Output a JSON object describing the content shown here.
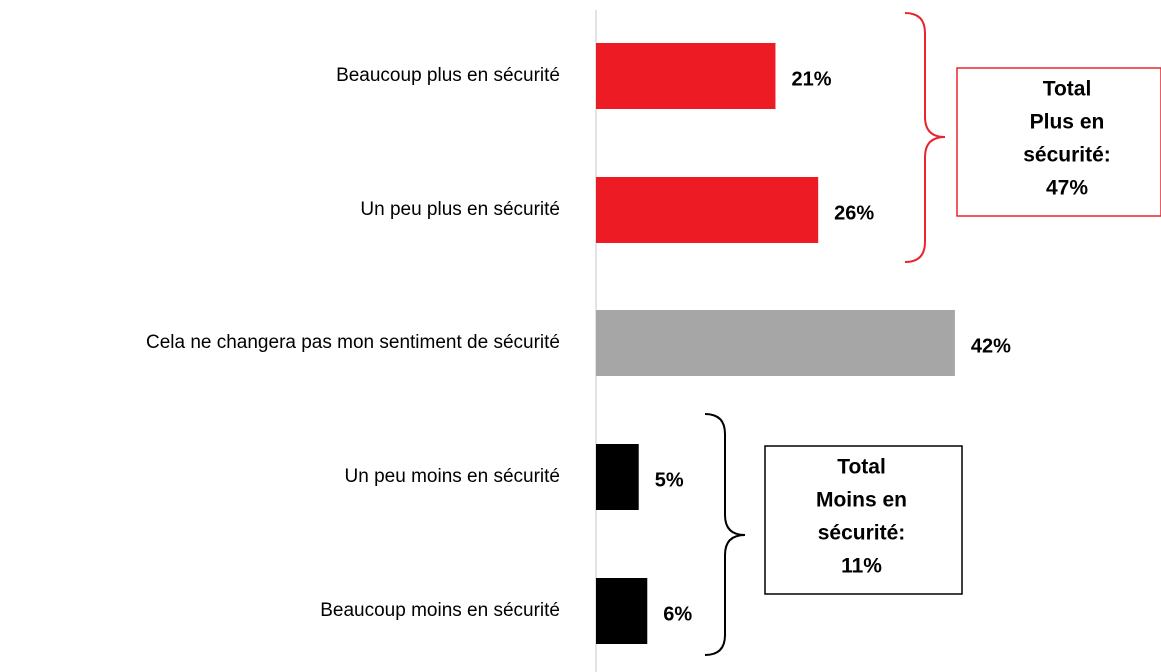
{
  "chart_data": {
    "type": "bar",
    "orientation": "horizontal",
    "categories": [
      "Beaucoup plus en sécurité",
      "Un peu plus en sécurité",
      "Cela ne changera pas mon sentiment de sécurité",
      "Un peu moins en sécurité",
      "Beaucoup moins en sécurité"
    ],
    "values": [
      21,
      26,
      42,
      5,
      6
    ],
    "value_labels": [
      "21%",
      "26%",
      "42%",
      "5%",
      "6%"
    ],
    "colors": [
      "#ed1c24",
      "#ed1c24",
      "#a6a6a6",
      "#000000",
      "#000000"
    ],
    "xlim": [
      0,
      66
    ],
    "annotations": [
      {
        "lines": [
          "Total",
          "Plus en",
          "sécurité:",
          "47%"
        ],
        "color": "#e8262d"
      },
      {
        "lines": [
          "Total",
          "Moins en",
          "sécurité:",
          "11%"
        ],
        "color": "#000000"
      }
    ]
  }
}
